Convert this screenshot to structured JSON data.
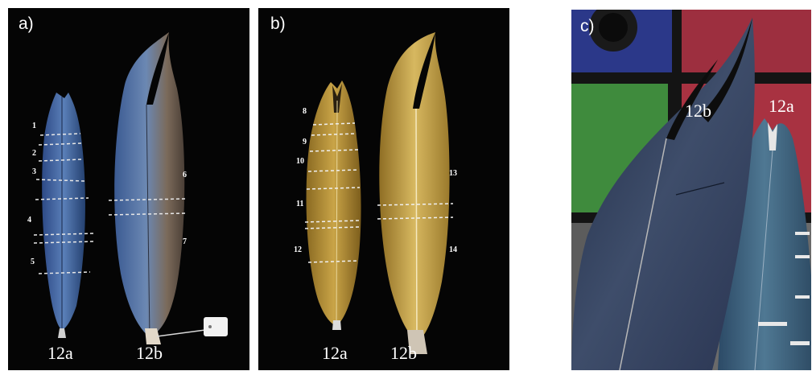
{
  "panels": {
    "a": {
      "label": "a)",
      "feather_left": "12a",
      "feather_right": "12b",
      "numbers": [
        "1",
        "2",
        "3",
        "4",
        "5",
        "6",
        "7"
      ]
    },
    "b": {
      "label": "b)",
      "feather_left": "12a",
      "feather_right": "12b",
      "numbers": [
        "8",
        "9",
        "10",
        "11",
        "12",
        "13",
        "14"
      ]
    },
    "c": {
      "label": "c)",
      "feather_left": "12b",
      "feather_right": "12a"
    }
  },
  "colors": {
    "background": "#050505",
    "blue_feather": "#3f5f8f",
    "gold_feather": "#b8952e",
    "checker_blue": "#2a3a8a",
    "checker_red": "#a83040",
    "checker_green": "#3f8a3c"
  }
}
